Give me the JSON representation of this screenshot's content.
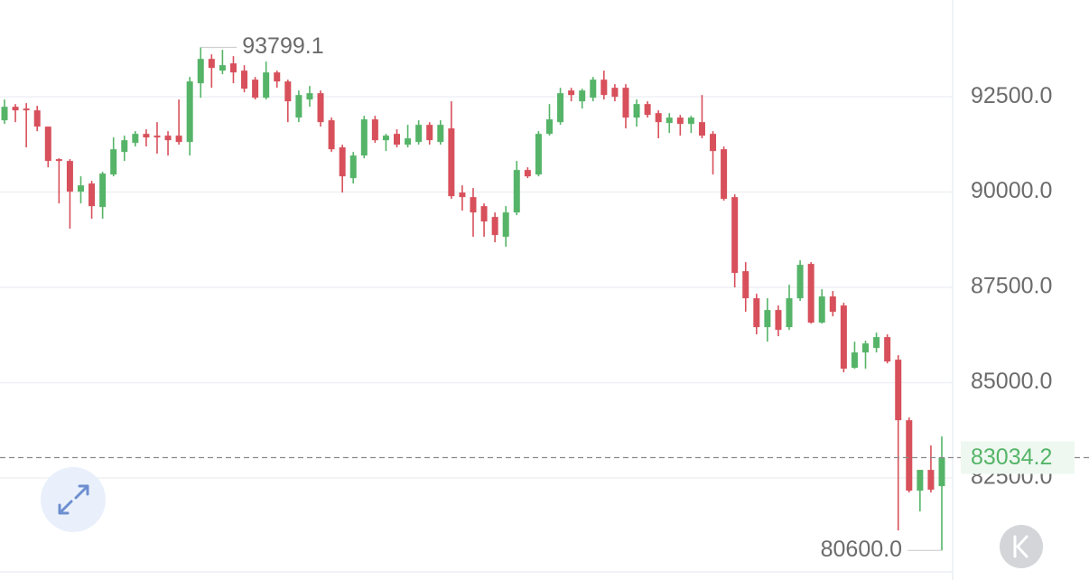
{
  "chart_data": {
    "type": "candlestick",
    "up_color": "#55b468",
    "down_color": "#d7505b",
    "ylim": [
      80060,
      95040
    ],
    "yticks": [
      {
        "value": 82500,
        "label": "82500.0"
      },
      {
        "value": 85000,
        "label": "85000.0"
      },
      {
        "value": 87500,
        "label": "87500.0"
      },
      {
        "value": 90000,
        "label": "90000.0"
      },
      {
        "value": 92500,
        "label": "92500.0"
      }
    ],
    "grid": true,
    "high_marker": {
      "value": 93799.1,
      "label": "93799.1"
    },
    "low_marker": {
      "value": 80600,
      "label": "80600.0"
    },
    "last_price": {
      "value": 83034.2,
      "label": "83034.2"
    },
    "open": [
      91884,
      92239,
      92192,
      92145,
      91718,
      90865,
      90817,
      90012,
      90225,
      89609,
      90462,
      91054,
      91291,
      91528,
      91481,
      91481,
      91481,
      91315,
      92856,
      93495,
      93187,
      93377,
      93187,
      92950,
      92476,
      93140,
      92903,
      91955,
      92429,
      92595,
      91884,
      91173,
      90367,
      90960,
      91908,
      91362,
      91528,
      91244,
      91315,
      91765,
      91315,
      91671,
      89988,
      89869,
      89632,
      89348,
      88827,
      89466,
      90580,
      90462,
      91528,
      91836,
      92666,
      92382,
      92476,
      92950,
      92737,
      92737,
      91955,
      92310,
      92073,
      91813,
      91955,
      91789,
      91836,
      91528,
      91125,
      89869,
      87926,
      87215,
      86457,
      86907,
      86457,
      87215,
      88116,
      86575,
      87262,
      87025,
      85390,
      85793,
      85911,
      86196,
      85603,
      84015,
      82167,
      82712,
      82285
    ],
    "high": [
      92429,
      92310,
      92334,
      92263,
      91718,
      90888,
      90865,
      90414,
      90296,
      90533,
      91434,
      91481,
      91599,
      91647,
      91836,
      91599,
      92429,
      93021,
      93799.1,
      93614,
      93732,
      93567,
      93330,
      93021,
      93424,
      93187,
      92950,
      92666,
      92784,
      92666,
      91955,
      91244,
      91054,
      92002,
      92002,
      91528,
      91647,
      91765,
      91884,
      91836,
      91884,
      92382,
      90177,
      90106,
      89703,
      89466,
      89632,
      90817,
      90651,
      91599,
      92310,
      92737,
      92737,
      92713,
      93021,
      93187,
      92832,
      92832,
      92429,
      92382,
      92145,
      92073,
      92026,
      92002,
      92547,
      91599,
      91197,
      89940,
      88163,
      87333,
      87215,
      87025,
      87570,
      88210,
      88163,
      87452,
      87405,
      87096,
      86077,
      86101,
      86314,
      86267,
      85722,
      84087,
      82712,
      83352,
      83589
    ],
    "low": [
      91789,
      91836,
      91173,
      91599,
      90651,
      89703,
      89040,
      89703,
      89301,
      89301,
      90414,
      90817,
      91197,
      91197,
      91007,
      90960,
      91244,
      90960,
      92476,
      92737,
      93093,
      92856,
      92619,
      92429,
      92429,
      92737,
      91836,
      91836,
      92239,
      91718,
      91054,
      89988,
      90225,
      90888,
      91291,
      91078,
      91173,
      91173,
      91244,
      91244,
      91244,
      89822,
      89514,
      88827,
      88827,
      88684,
      88566,
      89395,
      90367,
      90414,
      91481,
      91765,
      92382,
      92192,
      92382,
      92429,
      92382,
      91671,
      91718,
      91955,
      91410,
      91552,
      91481,
      91552,
      91410,
      90462,
      89775,
      87499,
      86859,
      86267,
      86077,
      86220,
      86385,
      87144,
      86551,
      86551,
      86741,
      85272,
      85366,
      85366,
      85793,
      85509,
      81124,
      82119,
      81622,
      82119,
      80600
    ],
    "close": [
      92239,
      92145,
      92145,
      91718,
      90817,
      90817,
      90012,
      90177,
      89632,
      90486,
      91125,
      91362,
      91528,
      91434,
      91434,
      91362,
      91315,
      92903,
      93495,
      93258,
      93330,
      93140,
      92713,
      92476,
      93140,
      92903,
      92382,
      92547,
      92595,
      91836,
      91125,
      90414,
      90960,
      91908,
      91362,
      91481,
      91244,
      91410,
      91765,
      91362,
      91765,
      89893,
      89869,
      89466,
      89229,
      88874,
      89466,
      90580,
      90414,
      91528,
      91908,
      92595,
      92547,
      92666,
      92950,
      92547,
      92500,
      91955,
      92310,
      92026,
      91836,
      91955,
      91789,
      91955,
      91481,
      91078,
      89822,
      87879,
      87215,
      86457,
      86907,
      86385,
      87215,
      88092,
      86575,
      87262,
      86859,
      85366,
      85793,
      86030,
      86196,
      85556,
      84015,
      82167,
      82712,
      82191,
      83034.2
    ]
  }
}
